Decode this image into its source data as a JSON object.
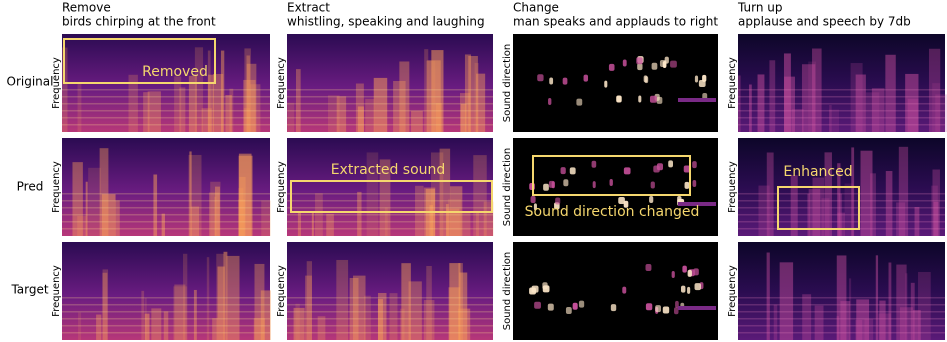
{
  "rows": [
    "Original",
    "Pred",
    "Target"
  ],
  "columns": [
    {
      "title": "Remove",
      "subtitle": "birds chirping at the front",
      "ylabels": [
        "Frequency",
        "Frequency",
        "Frequency"
      ],
      "annotation": "Removed"
    },
    {
      "title": "Extract",
      "subtitle": "whistling, speaking and laughing",
      "ylabels": [
        "Frequency",
        "Frequency",
        "Frequency"
      ],
      "annotation": "Extracted sound"
    },
    {
      "title": "Change",
      "subtitle": "man speaks and applauds to right",
      "ylabels": [
        "Sound direction",
        "Sound direction",
        "Sound direction"
      ],
      "annotation": "Sound direction changed"
    },
    {
      "title": "Turn up",
      "subtitle": "applause and speech by 7db",
      "ylabels": [
        "Frequency",
        "Frequency",
        "Frequency"
      ],
      "annotation": "Enhanced"
    }
  ]
}
